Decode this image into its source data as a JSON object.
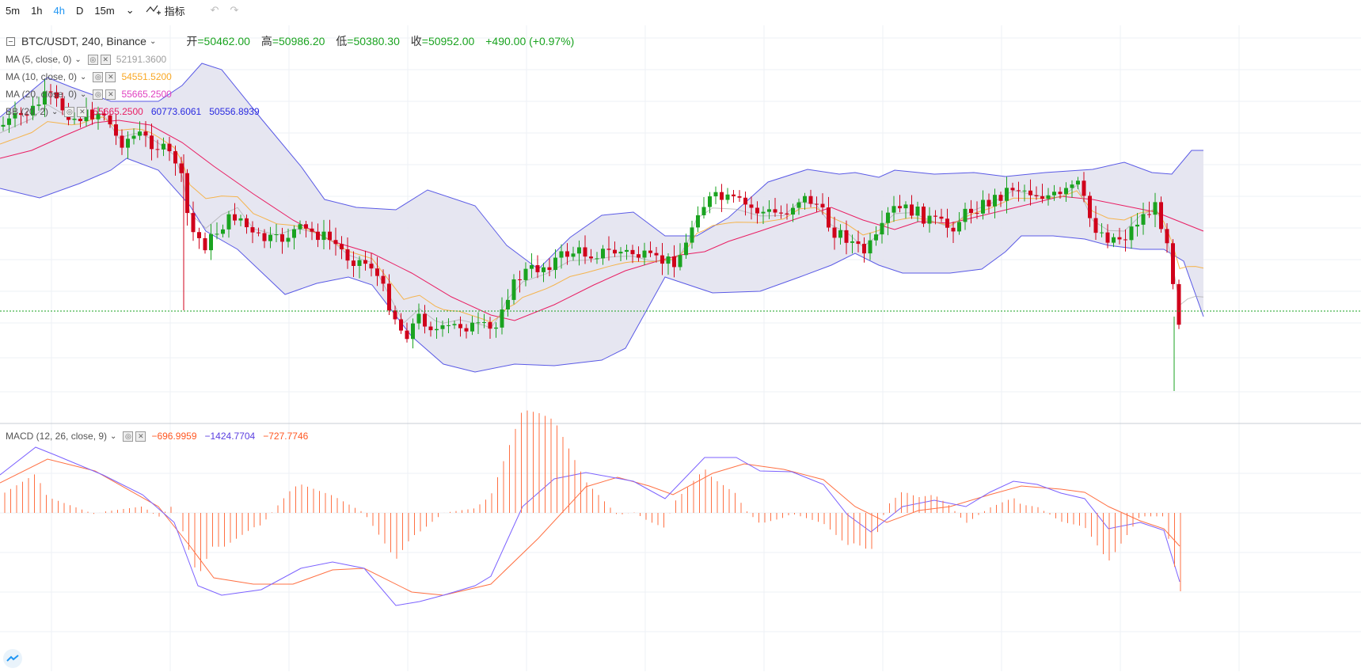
{
  "toolbar": {
    "intervals": [
      "5m",
      "1h",
      "4h",
      "D"
    ],
    "active_interval": "4h",
    "custom_interval": "15m",
    "indicators_label": "指标"
  },
  "main": {
    "symbol_title": "BTC/USDT, 240, Binance",
    "ohlc": {
      "open_label": "开",
      "open": "=50462.00",
      "high_label": "高",
      "high": "=50986.20",
      "low_label": "低",
      "low": "=50380.30",
      "close_label": "收",
      "close": "=50952.00",
      "change": "+490.00 (+0.97%)"
    },
    "studies": [
      {
        "label": "MA (5, close, 0)",
        "value": "52191.3600",
        "color": "#9e9e9e"
      },
      {
        "label": "MA (10, close, 0)",
        "value": "54551.5200",
        "color": "#f9a825"
      },
      {
        "label": "MA (20, close, 0)",
        "value": "55665.2500",
        "color": "#e040c0"
      },
      {
        "label": "BB (20, 2)",
        "values": [
          "55665.2500",
          "60773.6061",
          "50556.8939"
        ],
        "colors": [
          "#e91e63",
          "#2a2ae0",
          "#2a2ae0"
        ]
      }
    ]
  },
  "macd": {
    "label": "MACD (12, 26, close, 9)",
    "values": [
      "−696.9959",
      "−1424.7704",
      "−727.7746"
    ],
    "color": "#ff5722"
  },
  "colors": {
    "up": "#1aa320",
    "down": "#d0021b",
    "bb_fill": "#e3e3f0",
    "bb_line": "#5a5ae6",
    "mid_line": "#e91e63",
    "ma10": "#f9a825",
    "ma5": "#9e9e9e",
    "macd_line": "#7b61ff",
    "signal_line": "#ff7043",
    "hist": "#ff7043",
    "last_price": "#1aa320"
  }
}
